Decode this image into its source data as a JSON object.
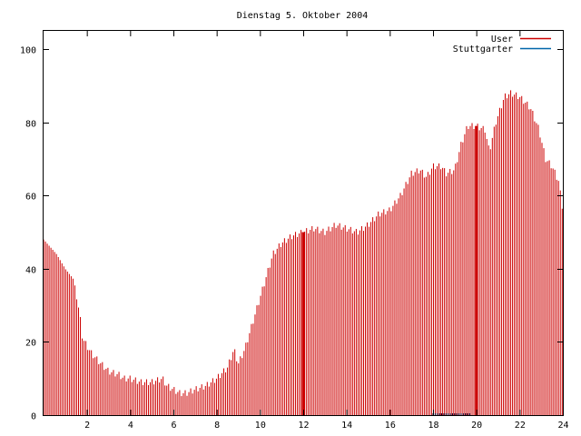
{
  "chart_data": {
    "type": "bar",
    "title": "Dienstag 5. Oktober 2004",
    "xlabel": "",
    "ylabel": "",
    "xlim": [
      0,
      24
    ],
    "ylim": [
      0,
      105
    ],
    "x_ticks": [
      2,
      4,
      6,
      8,
      10,
      12,
      14,
      16,
      18,
      20,
      22,
      24
    ],
    "x_tick_labels": [
      "2",
      "4",
      "6",
      "8",
      "10",
      "12",
      "14",
      "16",
      "18",
      "20",
      "22",
      "24"
    ],
    "y_ticks": [
      0,
      20,
      40,
      60,
      80,
      100
    ],
    "y_tick_labels": [
      "0",
      "20",
      "40",
      "60",
      "80",
      "100"
    ],
    "grid": false,
    "legend_position": "top-right",
    "series": [
      {
        "name": "User",
        "color": "#cc0000",
        "profile": [
          [
            0.0,
            48
          ],
          [
            0.3,
            46
          ],
          [
            0.6,
            44
          ],
          [
            1.0,
            40
          ],
          [
            1.4,
            37
          ],
          [
            1.6,
            30
          ],
          [
            1.7,
            26
          ],
          [
            1.8,
            21
          ],
          [
            2.0,
            19
          ],
          [
            2.2,
            17
          ],
          [
            2.5,
            15
          ],
          [
            3.0,
            12
          ],
          [
            3.5,
            11
          ],
          [
            3.7,
            10
          ],
          [
            4.0,
            10
          ],
          [
            4.5,
            9
          ],
          [
            5.0,
            9
          ],
          [
            5.5,
            10
          ],
          [
            5.7,
            8
          ],
          [
            6.0,
            7
          ],
          [
            6.3,
            6
          ],
          [
            6.6,
            6
          ],
          [
            7.0,
            7
          ],
          [
            7.5,
            8
          ],
          [
            8.0,
            10
          ],
          [
            8.5,
            13
          ],
          [
            8.8,
            18
          ],
          [
            9.0,
            14
          ],
          [
            9.3,
            18
          ],
          [
            9.7,
            26
          ],
          [
            10.0,
            32
          ],
          [
            10.3,
            38
          ],
          [
            10.6,
            44
          ],
          [
            11.0,
            47
          ],
          [
            11.5,
            49
          ],
          [
            12.0,
            50
          ],
          [
            12.5,
            51
          ],
          [
            13.0,
            50
          ],
          [
            13.5,
            52
          ],
          [
            14.0,
            51
          ],
          [
            14.5,
            50
          ],
          [
            15.0,
            52
          ],
          [
            15.5,
            55
          ],
          [
            16.0,
            56
          ],
          [
            16.5,
            60
          ],
          [
            17.0,
            66
          ],
          [
            17.4,
            67
          ],
          [
            17.7,
            65
          ],
          [
            18.0,
            68
          ],
          [
            18.4,
            68
          ],
          [
            18.6,
            66
          ],
          [
            19.0,
            67
          ],
          [
            19.3,
            74
          ],
          [
            19.6,
            79
          ],
          [
            20.0,
            79
          ],
          [
            20.4,
            78
          ],
          [
            20.6,
            72
          ],
          [
            20.9,
            80
          ],
          [
            21.3,
            87
          ],
          [
            21.6,
            88
          ],
          [
            22.0,
            87
          ],
          [
            22.5,
            84
          ],
          [
            22.9,
            78
          ],
          [
            23.2,
            70
          ],
          [
            23.5,
            68
          ],
          [
            23.8,
            64
          ],
          [
            24.0,
            56
          ]
        ]
      },
      {
        "name": "Stuttgarter",
        "color": "#0066aa",
        "profile": [
          [
            18.0,
            0.6
          ],
          [
            19.8,
            0.6
          ]
        ]
      }
    ],
    "highlight_bars": [
      12.0,
      20.0
    ]
  }
}
